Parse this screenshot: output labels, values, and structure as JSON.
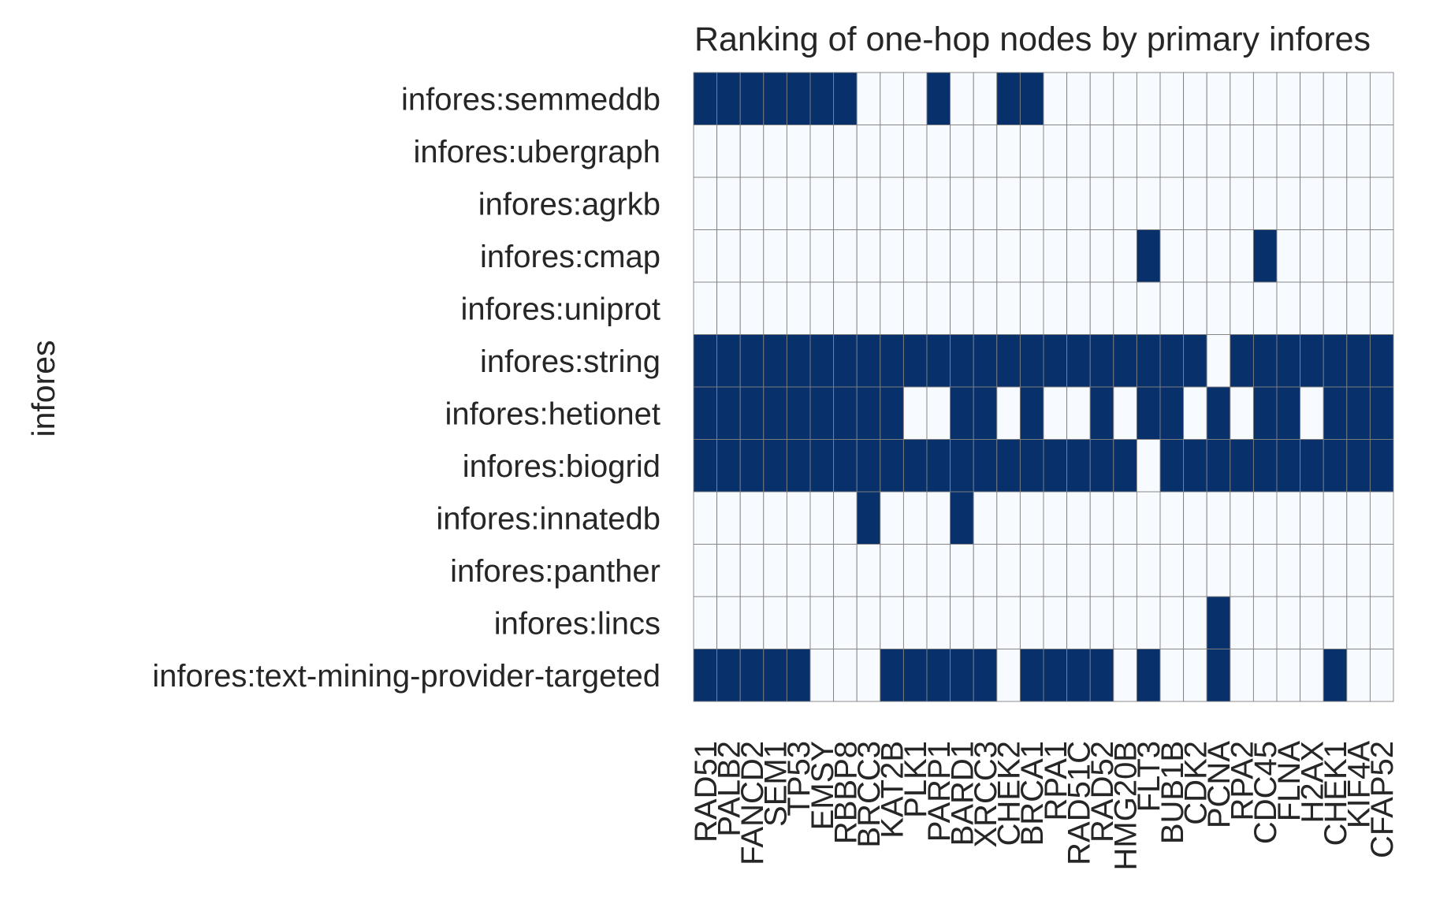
{
  "chart_data": {
    "type": "heatmap",
    "title": "Ranking of one-hop nodes by primary infores",
    "xlabel": "",
    "ylabel": "infores",
    "rows": [
      "infores:semmeddb",
      "infores:ubergraph",
      "infores:agrkb",
      "infores:cmap",
      "infores:uniprot",
      "infores:string",
      "infores:hetionet",
      "infores:biogrid",
      "infores:innatedb",
      "infores:panther",
      "infores:lincs",
      "infores:text-mining-provider-targeted"
    ],
    "columns": [
      "RAD51",
      "PALB2",
      "FANCD2",
      "SEM1",
      "TP53",
      "EMSY",
      "RBBP8",
      "BRCC3",
      "KAT2B",
      "PLK1",
      "PARP1",
      "BARD1",
      "XRCC3",
      "CHEK2",
      "BRCA1",
      "RPA1",
      "RAD51C",
      "RAD52",
      "HMG20B",
      "FLT3",
      "BUB1B",
      "CDK2",
      "PCNA",
      "RPA2",
      "CDC45",
      "FLNA",
      "H2AX",
      "CHEK1",
      "KIF4A",
      "CFAP52"
    ],
    "values": [
      [
        1,
        1,
        1,
        1,
        1,
        1,
        1,
        0,
        0,
        0,
        1,
        0,
        0,
        1,
        1,
        0,
        0,
        0,
        0,
        0,
        0,
        0,
        0,
        0,
        0,
        0,
        0,
        0,
        0,
        0
      ],
      [
        0,
        0,
        0,
        0,
        0,
        0,
        0,
        0,
        0,
        0,
        0,
        0,
        0,
        0,
        0,
        0,
        0,
        0,
        0,
        0,
        0,
        0,
        0,
        0,
        0,
        0,
        0,
        0,
        0,
        0
      ],
      [
        0,
        0,
        0,
        0,
        0,
        0,
        0,
        0,
        0,
        0,
        0,
        0,
        0,
        0,
        0,
        0,
        0,
        0,
        0,
        0,
        0,
        0,
        0,
        0,
        0,
        0,
        0,
        0,
        0,
        0
      ],
      [
        0,
        0,
        0,
        0,
        0,
        0,
        0,
        0,
        0,
        0,
        0,
        0,
        0,
        0,
        0,
        0,
        0,
        0,
        0,
        1,
        0,
        0,
        0,
        0,
        1,
        0,
        0,
        0,
        0,
        0
      ],
      [
        0,
        0,
        0,
        0,
        0,
        0,
        0,
        0,
        0,
        0,
        0,
        0,
        0,
        0,
        0,
        0,
        0,
        0,
        0,
        0,
        0,
        0,
        0,
        0,
        0,
        0,
        0,
        0,
        0,
        0
      ],
      [
        1,
        1,
        1,
        1,
        1,
        1,
        1,
        1,
        1,
        1,
        1,
        1,
        1,
        1,
        1,
        1,
        1,
        1,
        1,
        1,
        1,
        1,
        0,
        1,
        1,
        1,
        1,
        1,
        1,
        1
      ],
      [
        1,
        1,
        1,
        1,
        1,
        1,
        1,
        1,
        1,
        0,
        0,
        1,
        1,
        0,
        1,
        0,
        0,
        1,
        0,
        1,
        1,
        0,
        1,
        0,
        1,
        1,
        0,
        1,
        1,
        1
      ],
      [
        1,
        1,
        1,
        1,
        1,
        1,
        1,
        1,
        1,
        1,
        1,
        1,
        1,
        1,
        1,
        1,
        1,
        1,
        1,
        0,
        1,
        1,
        1,
        1,
        1,
        1,
        1,
        1,
        1,
        1
      ],
      [
        0,
        0,
        0,
        0,
        0,
        0,
        0,
        1,
        0,
        0,
        0,
        1,
        0,
        0,
        0,
        0,
        0,
        0,
        0,
        0,
        0,
        0,
        0,
        0,
        0,
        0,
        0,
        0,
        0,
        0
      ],
      [
        0,
        0,
        0,
        0,
        0,
        0,
        0,
        0,
        0,
        0,
        0,
        0,
        0,
        0,
        0,
        0,
        0,
        0,
        0,
        0,
        0,
        0,
        0,
        0,
        0,
        0,
        0,
        0,
        0,
        0
      ],
      [
        0,
        0,
        0,
        0,
        0,
        0,
        0,
        0,
        0,
        0,
        0,
        0,
        0,
        0,
        0,
        0,
        0,
        0,
        0,
        0,
        0,
        0,
        1,
        0,
        0,
        0,
        0,
        0,
        0,
        0
      ],
      [
        1,
        1,
        1,
        1,
        1,
        0,
        0,
        0,
        1,
        1,
        1,
        1,
        1,
        0,
        1,
        1,
        1,
        1,
        0,
        1,
        0,
        0,
        1,
        0,
        0,
        0,
        0,
        1,
        0,
        0
      ]
    ],
    "colors": {
      "high": "#08306b",
      "low": "#f7fbff",
      "grid": "#808080"
    },
    "colorbar": false
  }
}
